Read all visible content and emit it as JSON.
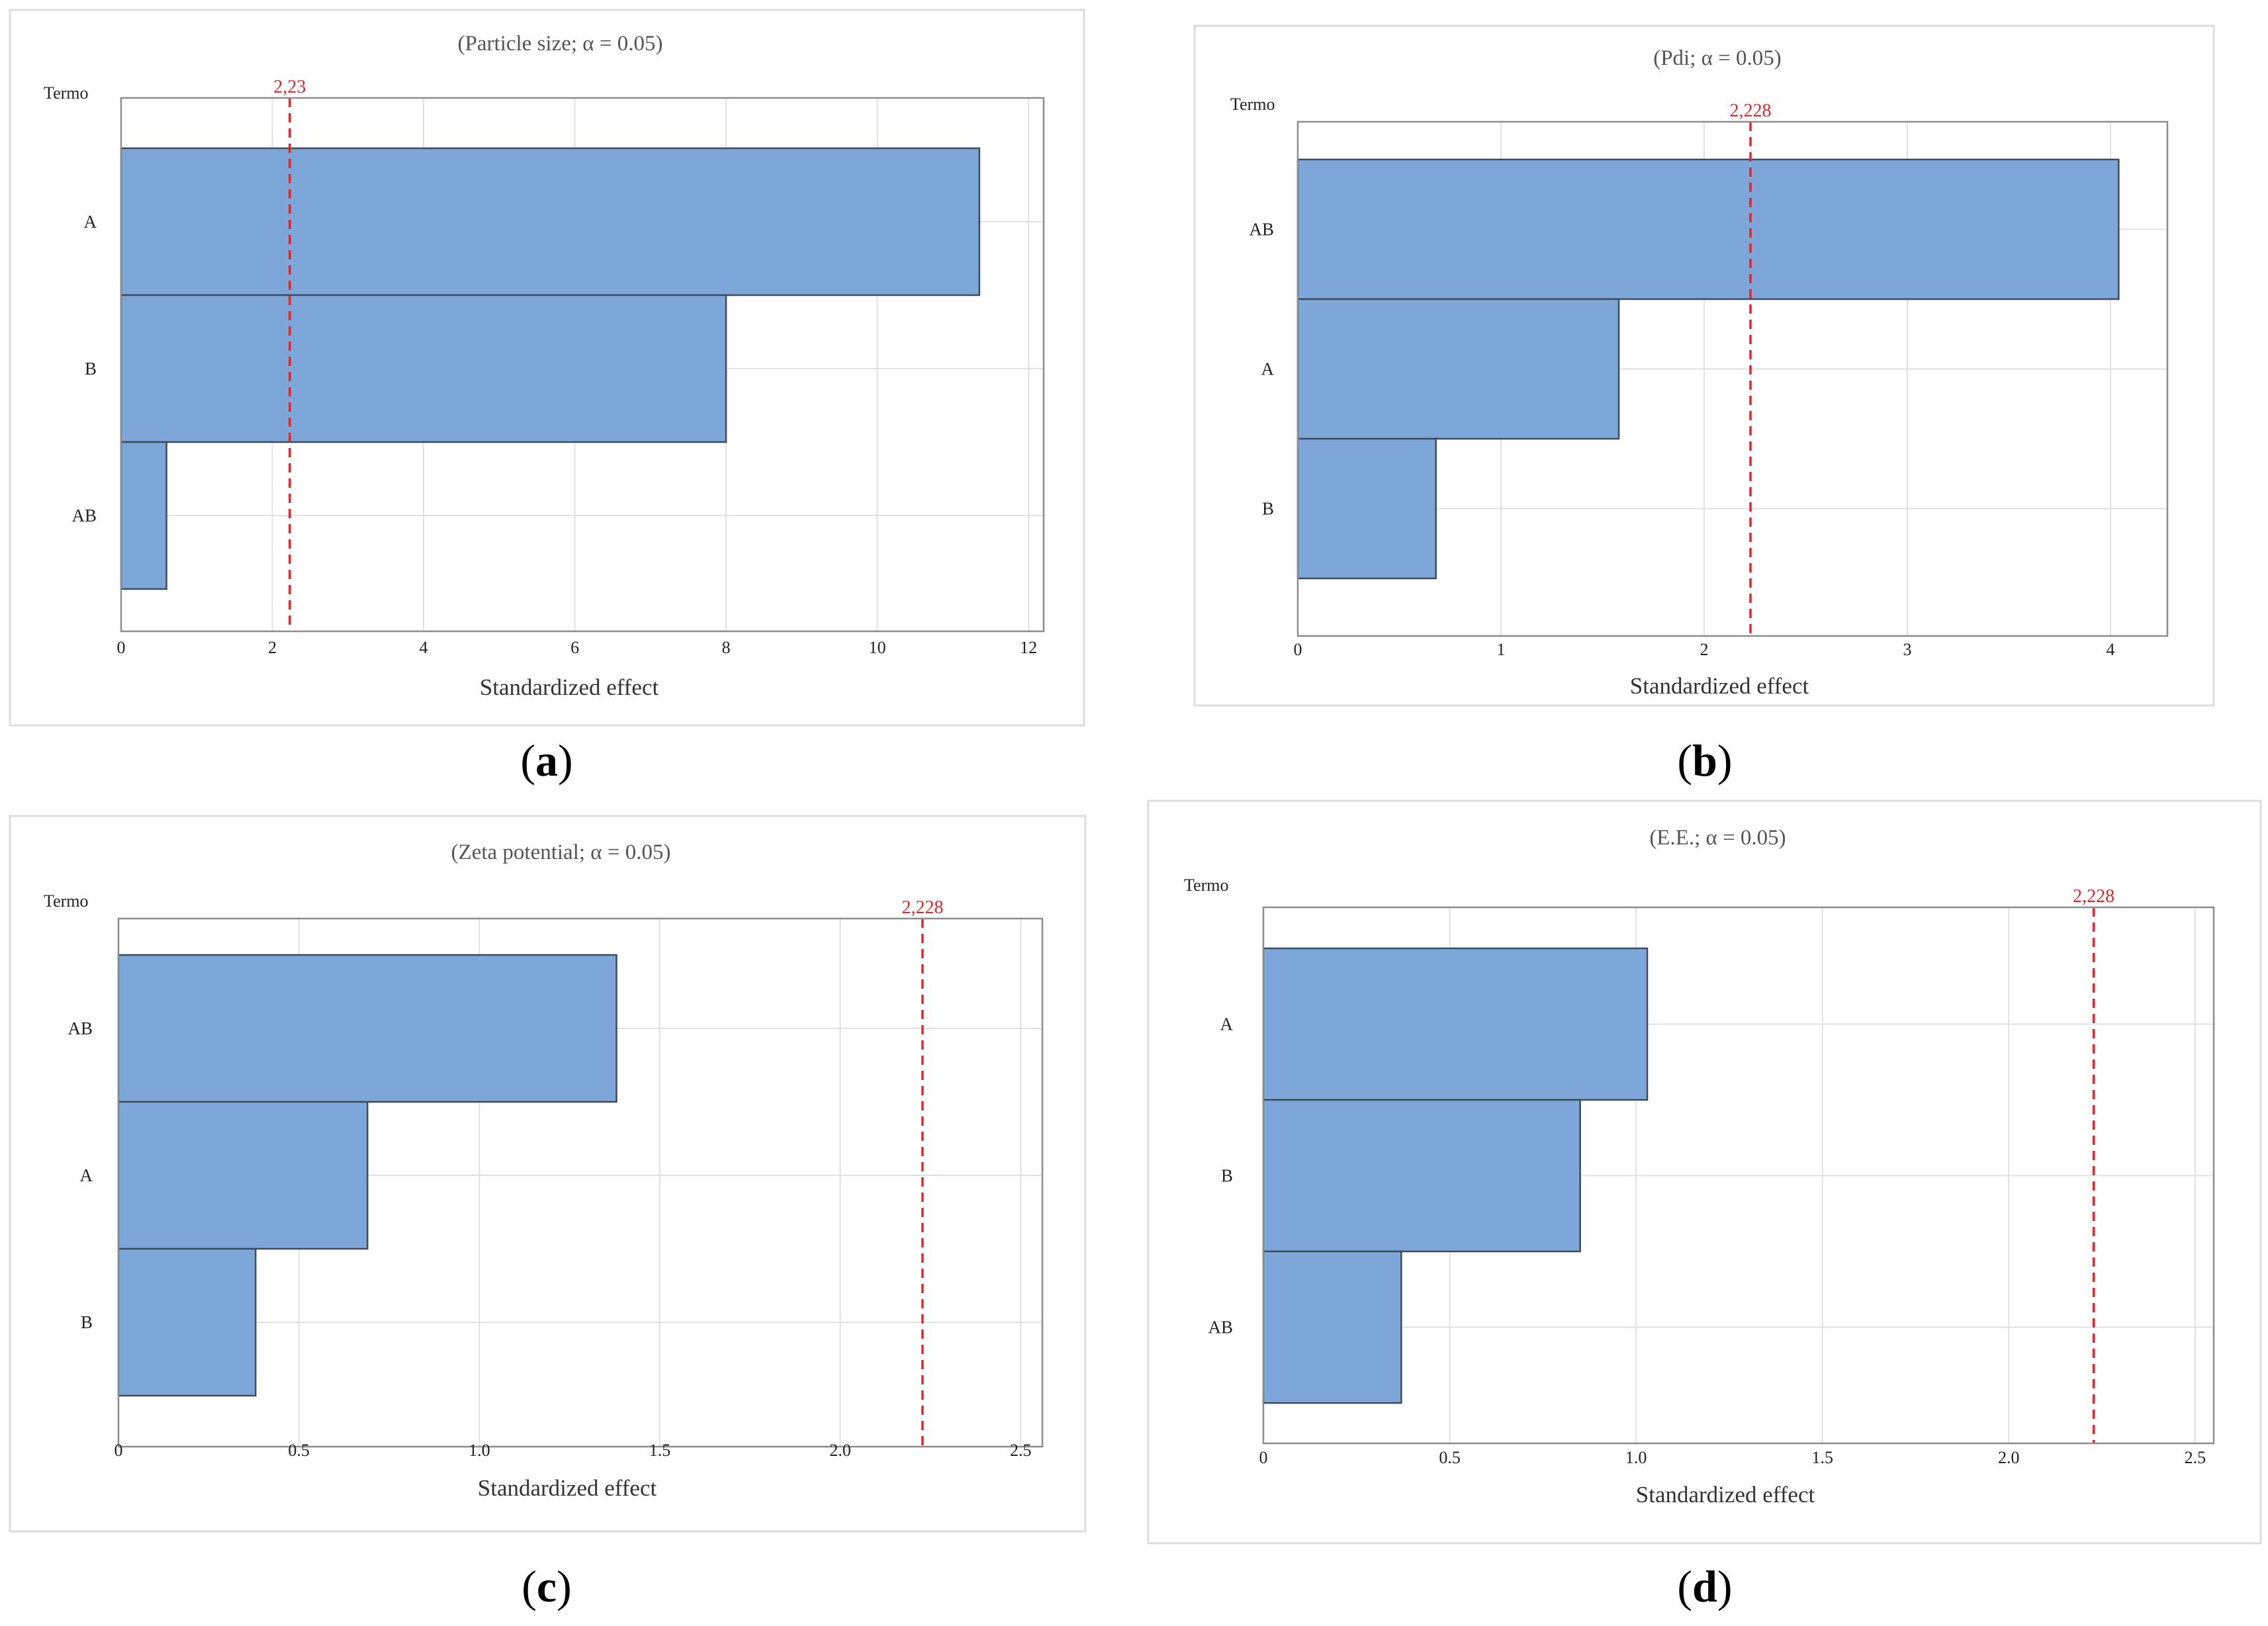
{
  "chart_data": [
    {
      "type": "bar",
      "orientation": "horizontal",
      "title": "(Particle size; α = 0.05)",
      "y_header": "Termo",
      "categories": [
        "A",
        "B",
        "AB"
      ],
      "values": [
        11.35,
        8.0,
        0.6
      ],
      "xlabel": "Standardized effect",
      "xlim": [
        0,
        12.2
      ],
      "xticks": [
        "0",
        "2",
        "4",
        "6",
        "8",
        "10",
        "12"
      ],
      "xtick_values": [
        0,
        2,
        4,
        6,
        8,
        10,
        12
      ],
      "reference_value": 2.23,
      "reference_label": "2,23",
      "panel": "a"
    },
    {
      "type": "bar",
      "orientation": "horizontal",
      "title": "(Pdi; α = 0.05)",
      "y_header": "Termo",
      "categories": [
        "AB",
        "A",
        "B"
      ],
      "values": [
        4.04,
        1.58,
        0.68
      ],
      "xlabel": "Standardized effect",
      "xlim": [
        0,
        4.28
      ],
      "xticks": [
        "0",
        "1",
        "2",
        "3",
        "4"
      ],
      "xtick_values": [
        0,
        1,
        2,
        3,
        4
      ],
      "reference_value": 2.228,
      "reference_label": "2,228",
      "panel": "b"
    },
    {
      "type": "bar",
      "orientation": "horizontal",
      "title": "(Zeta potential; α = 0.05)",
      "y_header": "Termo",
      "categories": [
        "AB",
        "A",
        "B"
      ],
      "values": [
        1.38,
        0.69,
        0.38
      ],
      "xlabel": "Standardized effect",
      "xlim": [
        0,
        2.56
      ],
      "xticks": [
        "0",
        "0.5",
        "1.0",
        "1.5",
        "2.0",
        "2.5"
      ],
      "xtick_values": [
        0,
        0.5,
        1.0,
        1.5,
        2.0,
        2.5
      ],
      "reference_value": 2.228,
      "reference_label": "2,228",
      "panel": "c"
    },
    {
      "type": "bar",
      "orientation": "horizontal",
      "title": "(E.E.; α = 0.05)",
      "y_header": "Termo",
      "categories": [
        "A",
        "B",
        "AB"
      ],
      "values": [
        1.03,
        0.85,
        0.37
      ],
      "xlabel": "Standardized effect",
      "xlim": [
        0,
        2.55
      ],
      "xticks": [
        "0",
        "0.5",
        "1.0",
        "1.5",
        "2.0",
        "2.5"
      ],
      "xtick_values": [
        0,
        0.5,
        1.0,
        1.5,
        2.0,
        2.5
      ],
      "reference_value": 2.228,
      "reference_label": "2,228",
      "panel": "d"
    }
  ],
  "panel_labels": [
    "a",
    "b",
    "c",
    "d"
  ],
  "colors": {
    "bar_fill": "#7da7d9",
    "bar_stroke": "#3f4a5a",
    "reference_line": "#e0262a",
    "grid": "#e1e1e1",
    "frame": "#8c8c8c",
    "panel_border": "#dcdcdc",
    "text": "#333333"
  }
}
